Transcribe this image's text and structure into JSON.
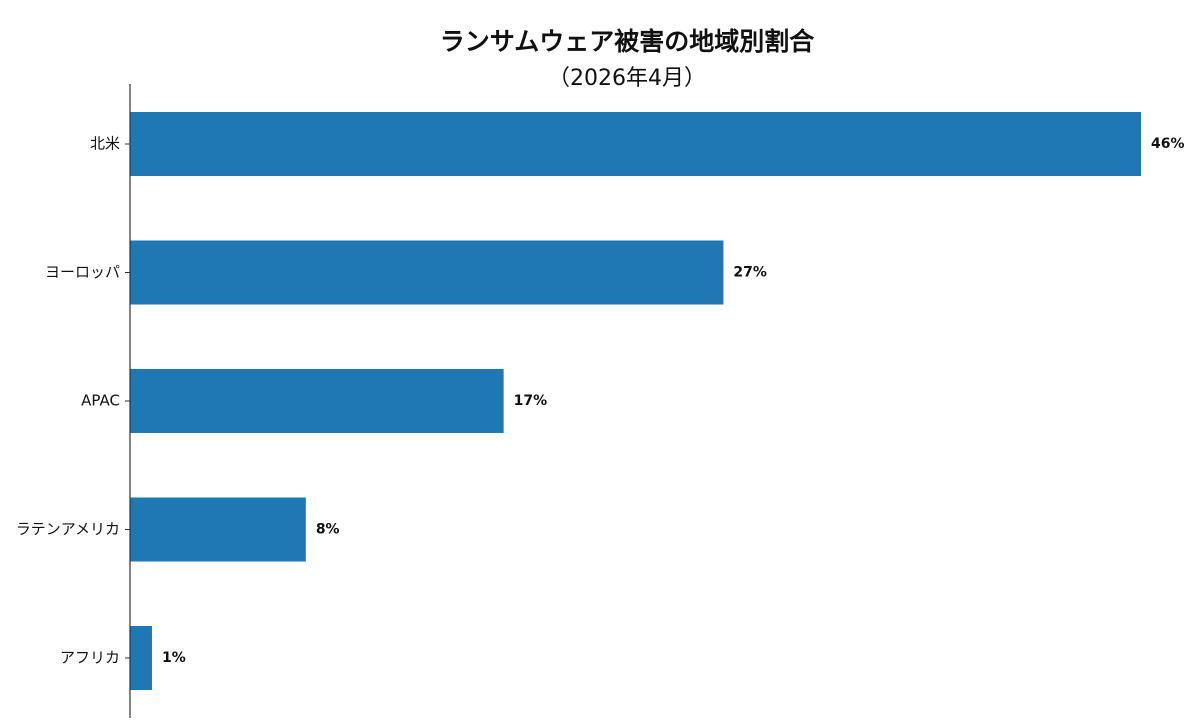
{
  "chart_data": {
    "type": "bar",
    "orientation": "horizontal",
    "title": "ランサムウェア被害の地域別割合",
    "subtitle": "（2026年4月）",
    "categories": [
      "北米",
      "ヨーロッパ",
      "APAC",
      "ラテンアメリカ",
      "アフリカ"
    ],
    "values": [
      46,
      27,
      17,
      8,
      1
    ],
    "data_labels": [
      "46%",
      "27%",
      "17%",
      "8%",
      "1%"
    ],
    "unit": "%",
    "xlim": [
      0,
      46
    ],
    "xlabel": "",
    "ylabel": "",
    "grid": false,
    "legend": "none",
    "bar_color": "#1f77b4"
  }
}
